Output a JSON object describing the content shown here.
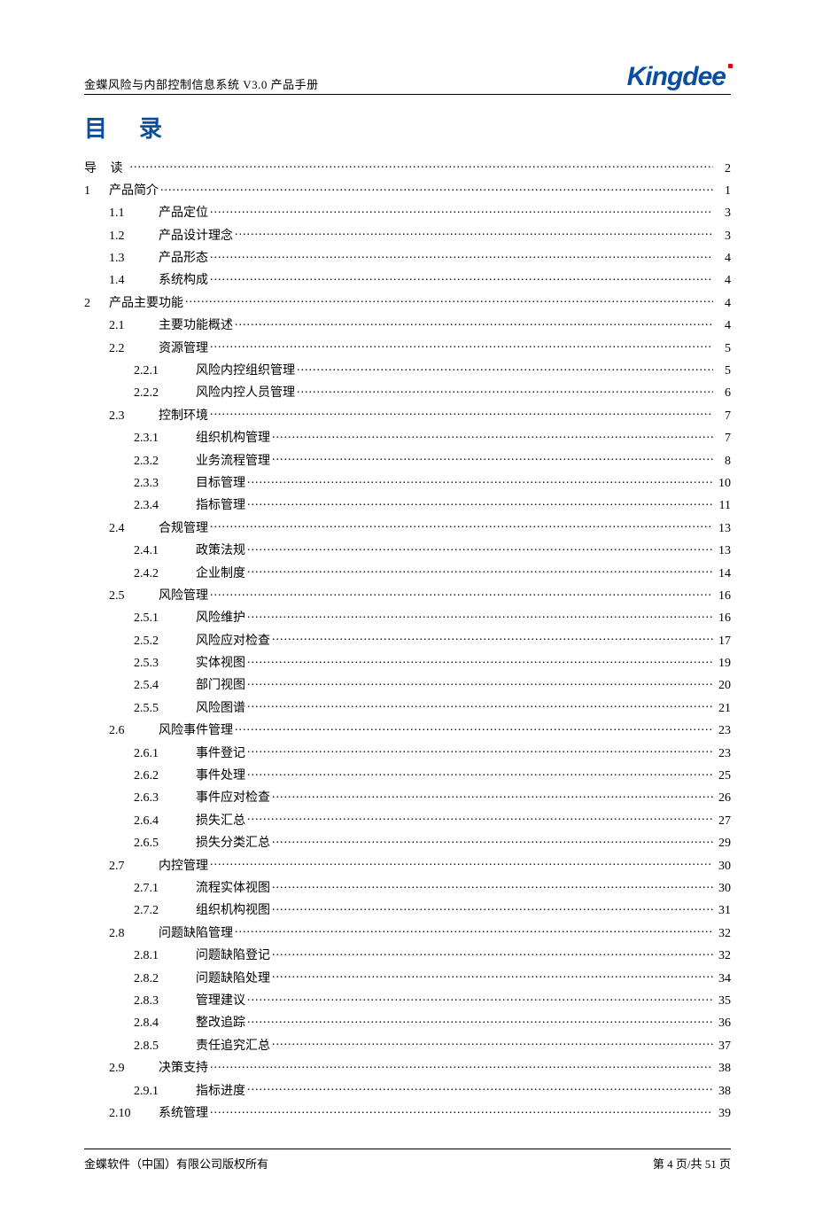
{
  "header": {
    "doc_title": "金蝶风险与内部控制信息系统 V3.0 产品手册",
    "logo_text": "Kingdee"
  },
  "toc_heading": "目录",
  "footer": {
    "copyright": "金蝶软件（中国）有限公司版权所有",
    "page_info": "第 4 页/共 51 页"
  },
  "toc": [
    {
      "level": 0,
      "num": "",
      "title": "导 读",
      "page": "2",
      "spaced": true
    },
    {
      "level": 0,
      "num": "1",
      "title": "产品简介",
      "page": "1"
    },
    {
      "level": 1,
      "num": "1.1",
      "title": "产品定位",
      "page": "3"
    },
    {
      "level": 1,
      "num": "1.2",
      "title": "产品设计理念",
      "page": "3"
    },
    {
      "level": 1,
      "num": "1.3",
      "title": "产品形态",
      "page": "4"
    },
    {
      "level": 1,
      "num": "1.4",
      "title": "系统构成",
      "page": "4"
    },
    {
      "level": 0,
      "num": "2",
      "title": "产品主要功能",
      "page": "4"
    },
    {
      "level": 1,
      "num": "2.1",
      "title": "主要功能概述",
      "page": "4"
    },
    {
      "level": 1,
      "num": "2.2",
      "title": "资源管理",
      "page": "5"
    },
    {
      "level": 2,
      "num": "2.2.1",
      "title": "风险内控组织管理",
      "page": "5"
    },
    {
      "level": 2,
      "num": "2.2.2",
      "title": "风险内控人员管理",
      "page": "6"
    },
    {
      "level": 1,
      "num": "2.3",
      "title": "控制环境",
      "page": "7"
    },
    {
      "level": 2,
      "num": "2.3.1",
      "title": "组织机构管理",
      "page": "7"
    },
    {
      "level": 2,
      "num": "2.3.2",
      "title": "业务流程管理",
      "page": "8"
    },
    {
      "level": 2,
      "num": "2.3.3",
      "title": "目标管理",
      "page": "10"
    },
    {
      "level": 2,
      "num": "2.3.4",
      "title": "指标管理",
      "page": "11"
    },
    {
      "level": 1,
      "num": "2.4",
      "title": "合规管理",
      "page": "13"
    },
    {
      "level": 2,
      "num": "2.4.1",
      "title": "政策法规",
      "page": "13"
    },
    {
      "level": 2,
      "num": "2.4.2",
      "title": "企业制度",
      "page": "14"
    },
    {
      "level": 1,
      "num": "2.5",
      "title": "风险管理",
      "page": "16"
    },
    {
      "level": 2,
      "num": "2.5.1",
      "title": "风险维护",
      "page": "16"
    },
    {
      "level": 2,
      "num": "2.5.2",
      "title": "风险应对检查",
      "page": "17"
    },
    {
      "level": 2,
      "num": "2.5.3",
      "title": "实体视图",
      "page": "19"
    },
    {
      "level": 2,
      "num": "2.5.4",
      "title": "部门视图",
      "page": "20"
    },
    {
      "level": 2,
      "num": "2.5.5",
      "title": "风险图谱",
      "page": "21"
    },
    {
      "level": 1,
      "num": "2.6",
      "title": "风险事件管理",
      "page": "23"
    },
    {
      "level": 2,
      "num": "2.6.1",
      "title": "事件登记",
      "page": "23"
    },
    {
      "level": 2,
      "num": "2.6.2",
      "title": "事件处理",
      "page": "25"
    },
    {
      "level": 2,
      "num": "2.6.3",
      "title": "事件应对检查",
      "page": "26"
    },
    {
      "level": 2,
      "num": "2.6.4",
      "title": "损失汇总",
      "page": "27"
    },
    {
      "level": 2,
      "num": "2.6.5",
      "title": "损失分类汇总",
      "page": "29"
    },
    {
      "level": 1,
      "num": "2.7",
      "title": "内控管理",
      "page": "30"
    },
    {
      "level": 2,
      "num": "2.7.1",
      "title": "流程实体视图",
      "page": "30"
    },
    {
      "level": 2,
      "num": "2.7.2",
      "title": "组织机构视图",
      "page": "31"
    },
    {
      "level": 1,
      "num": "2.8",
      "title": "问题缺陷管理",
      "page": "32"
    },
    {
      "level": 2,
      "num": "2.8.1",
      "title": "问题缺陷登记",
      "page": "32"
    },
    {
      "level": 2,
      "num": "2.8.2",
      "title": "问题缺陷处理",
      "page": "34"
    },
    {
      "level": 2,
      "num": "2.8.3",
      "title": "管理建议",
      "page": "35"
    },
    {
      "level": 2,
      "num": "2.8.4",
      "title": "整改追踪",
      "page": "36"
    },
    {
      "level": 2,
      "num": "2.8.5",
      "title": "责任追究汇总",
      "page": "37"
    },
    {
      "level": 1,
      "num": "2.9",
      "title": "决策支持",
      "page": "38"
    },
    {
      "level": 2,
      "num": "2.9.1",
      "title": "指标进度",
      "page": "38"
    },
    {
      "level": 1,
      "num": "2.10",
      "title": "系统管理",
      "page": "39"
    }
  ]
}
